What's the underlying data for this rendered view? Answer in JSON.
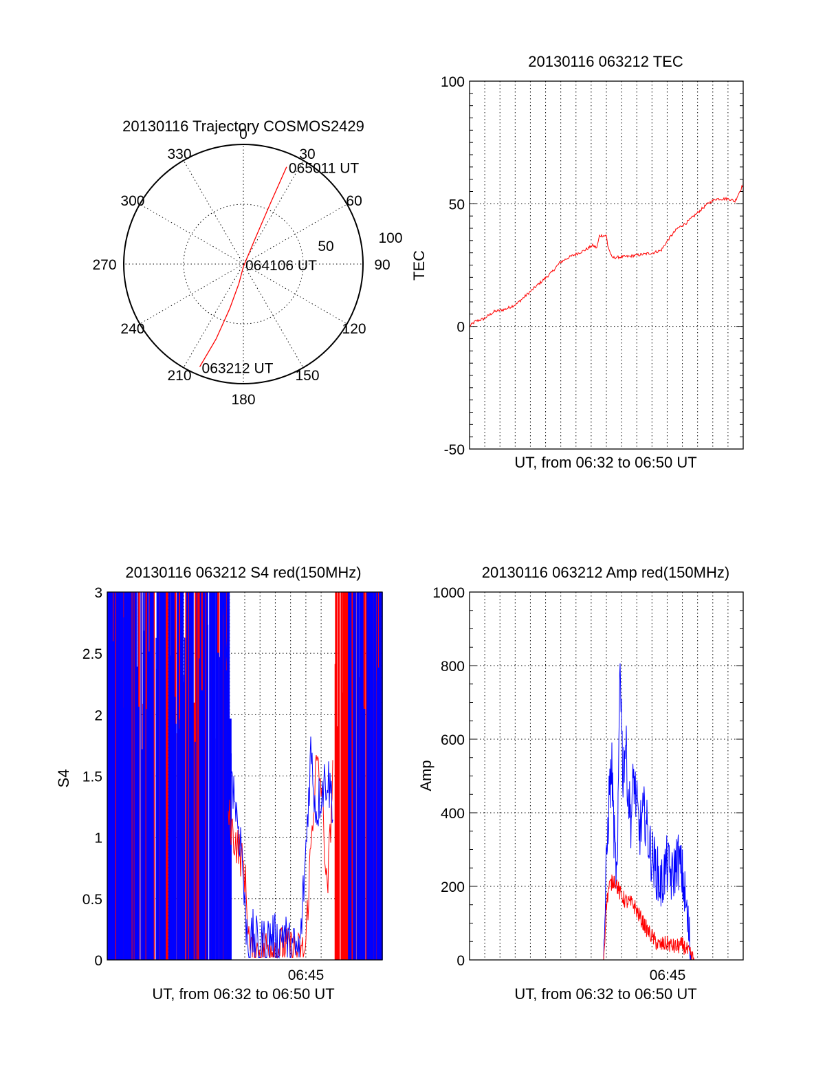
{
  "chart_data": [
    {
      "type": "polar",
      "title": "20130116 Trajectory COSMOS2429",
      "angle_labels": [
        "0",
        "30",
        "60",
        "90",
        "120",
        "150",
        "180",
        "210",
        "240",
        "270",
        "300",
        "330"
      ],
      "radial_labels": [
        "50",
        "100"
      ],
      "series": [
        {
          "color": "#ff0000",
          "points": [
            {
              "az": 203,
              "zen": 84
            },
            {
              "az": 200,
              "zen": 60
            },
            {
              "az": 197,
              "zen": 35
            },
            {
              "az": 193,
              "zen": 15
            },
            {
              "az": 180,
              "zen": 2
            },
            {
              "az": 25,
              "zen": 20
            },
            {
              "az": 24,
              "zen": 50
            },
            {
              "az": 24,
              "zen": 80
            }
          ]
        }
      ],
      "annotations": [
        {
          "text": "065011 UT",
          "az": 24,
          "zen": 80
        },
        {
          "text": "064106 UT",
          "az": 0,
          "zen": 0
        },
        {
          "text": "063212 UT",
          "az": 203,
          "zen": 84
        }
      ]
    },
    {
      "type": "line",
      "title": "20130116 063212 TEC",
      "xlabel": "UT, from 06:32 to 06:50 UT",
      "ylabel": "TEC",
      "xlim": [
        0,
        1
      ],
      "ylim": [
        -50,
        100
      ],
      "yticks": [
        "100",
        "50",
        "0",
        "-50"
      ],
      "series": [
        {
          "color": "#ff0000",
          "x": [
            0,
            0.02,
            0.05,
            0.09,
            0.13,
            0.17,
            0.2,
            0.24,
            0.28,
            0.3,
            0.33,
            0.36,
            0.38,
            0.42,
            0.45,
            0.465,
            0.475,
            0.5,
            0.505,
            0.52,
            0.58,
            0.64,
            0.67,
            0.7,
            0.73,
            0.76,
            0.79,
            0.81,
            0.84,
            0.87,
            0.9,
            0.92,
            0.95,
            0.97,
            1.0
          ],
          "y": [
            0,
            2,
            3,
            6,
            7,
            9,
            12,
            16,
            20,
            22,
            26,
            28,
            29,
            31,
            33,
            32,
            37,
            37,
            33,
            28,
            28.5,
            29.5,
            30,
            31,
            36,
            40,
            42,
            44,
            47,
            50,
            52,
            52,
            52,
            51,
            58
          ]
        }
      ]
    },
    {
      "type": "line",
      "title": "20130116 063212 S4 red(150MHz)",
      "xlabel": "UT, from 06:32 to 06:50 UT",
      "ylabel": "S4",
      "ylim": [
        0,
        3
      ],
      "yticks": [
        "3",
        "2.5",
        "2",
        "1.5",
        "1",
        "0.5",
        "0"
      ],
      "xtick_label": "06:45",
      "series": [
        {
          "color": "#ff0000",
          "x": [
            0.44,
            0.46,
            0.48,
            0.5,
            0.52,
            0.54,
            0.56,
            0.58,
            0.6,
            0.62,
            0.64,
            0.66,
            0.68,
            0.7,
            0.72,
            0.74,
            0.76,
            0.78,
            0.8,
            0.82
          ],
          "y": [
            1.2,
            1.0,
            0.9,
            0.7,
            0.05,
            0.06,
            0.08,
            0.1,
            0.12,
            0.1,
            0.11,
            0.09,
            0.07,
            0.06,
            0.06,
            0.9,
            1.6,
            1.4,
            0.5,
            1.5
          ]
        },
        {
          "color": "#0000ff",
          "x": [
            0.42,
            0.45,
            0.47,
            0.49,
            0.5,
            0.52,
            0.53,
            0.55,
            0.58,
            0.6,
            0.62,
            0.64,
            0.66,
            0.68,
            0.7,
            0.72,
            0.74,
            0.76,
            0.78,
            0.8,
            0.82
          ],
          "y": [
            3.0,
            1.6,
            1.2,
            0.9,
            0.4,
            0.05,
            0.2,
            0.1,
            0.15,
            0.2,
            0.12,
            0.25,
            0.1,
            0.08,
            0.06,
            0.8,
            1.7,
            1.2,
            1.4,
            1.5,
            1.3
          ]
        }
      ]
    },
    {
      "type": "line",
      "title": "20130116 063212 Amp red(150MHz)",
      "xlabel": "UT, from 06:32 to 06:50 UT",
      "ylabel": "Amp",
      "ylim": [
        0,
        1000
      ],
      "yticks": [
        "1000",
        "800",
        "600",
        "400",
        "200",
        "0"
      ],
      "xtick_label": "06:45",
      "series": [
        {
          "color": "#ff0000",
          "x": [
            0,
            0.49,
            0.5,
            0.51,
            0.53,
            0.55,
            0.57,
            0.6,
            0.62,
            0.65,
            0.67,
            0.69,
            0.7,
            0.72,
            0.75,
            0.78,
            0.8,
            0.82,
            1.0
          ],
          "y": [
            0,
            0,
            150,
            200,
            220,
            180,
            160,
            150,
            120,
            80,
            60,
            40,
            40,
            45,
            35,
            40,
            20,
            0,
            0
          ]
        },
        {
          "color": "#0000ff",
          "x": [
            0,
            0.49,
            0.5,
            0.51,
            0.52,
            0.53,
            0.54,
            0.55,
            0.56,
            0.57,
            0.58,
            0.59,
            0.6,
            0.62,
            0.64,
            0.66,
            0.68,
            0.7,
            0.72,
            0.74,
            0.76,
            0.78,
            0.8,
            0.81,
            1.0
          ],
          "y": [
            0,
            0,
            250,
            450,
            520,
            300,
            200,
            850,
            500,
            600,
            450,
            380,
            500,
            350,
            400,
            300,
            250,
            200,
            260,
            220,
            280,
            220,
            80,
            0,
            0
          ]
        }
      ]
    }
  ]
}
